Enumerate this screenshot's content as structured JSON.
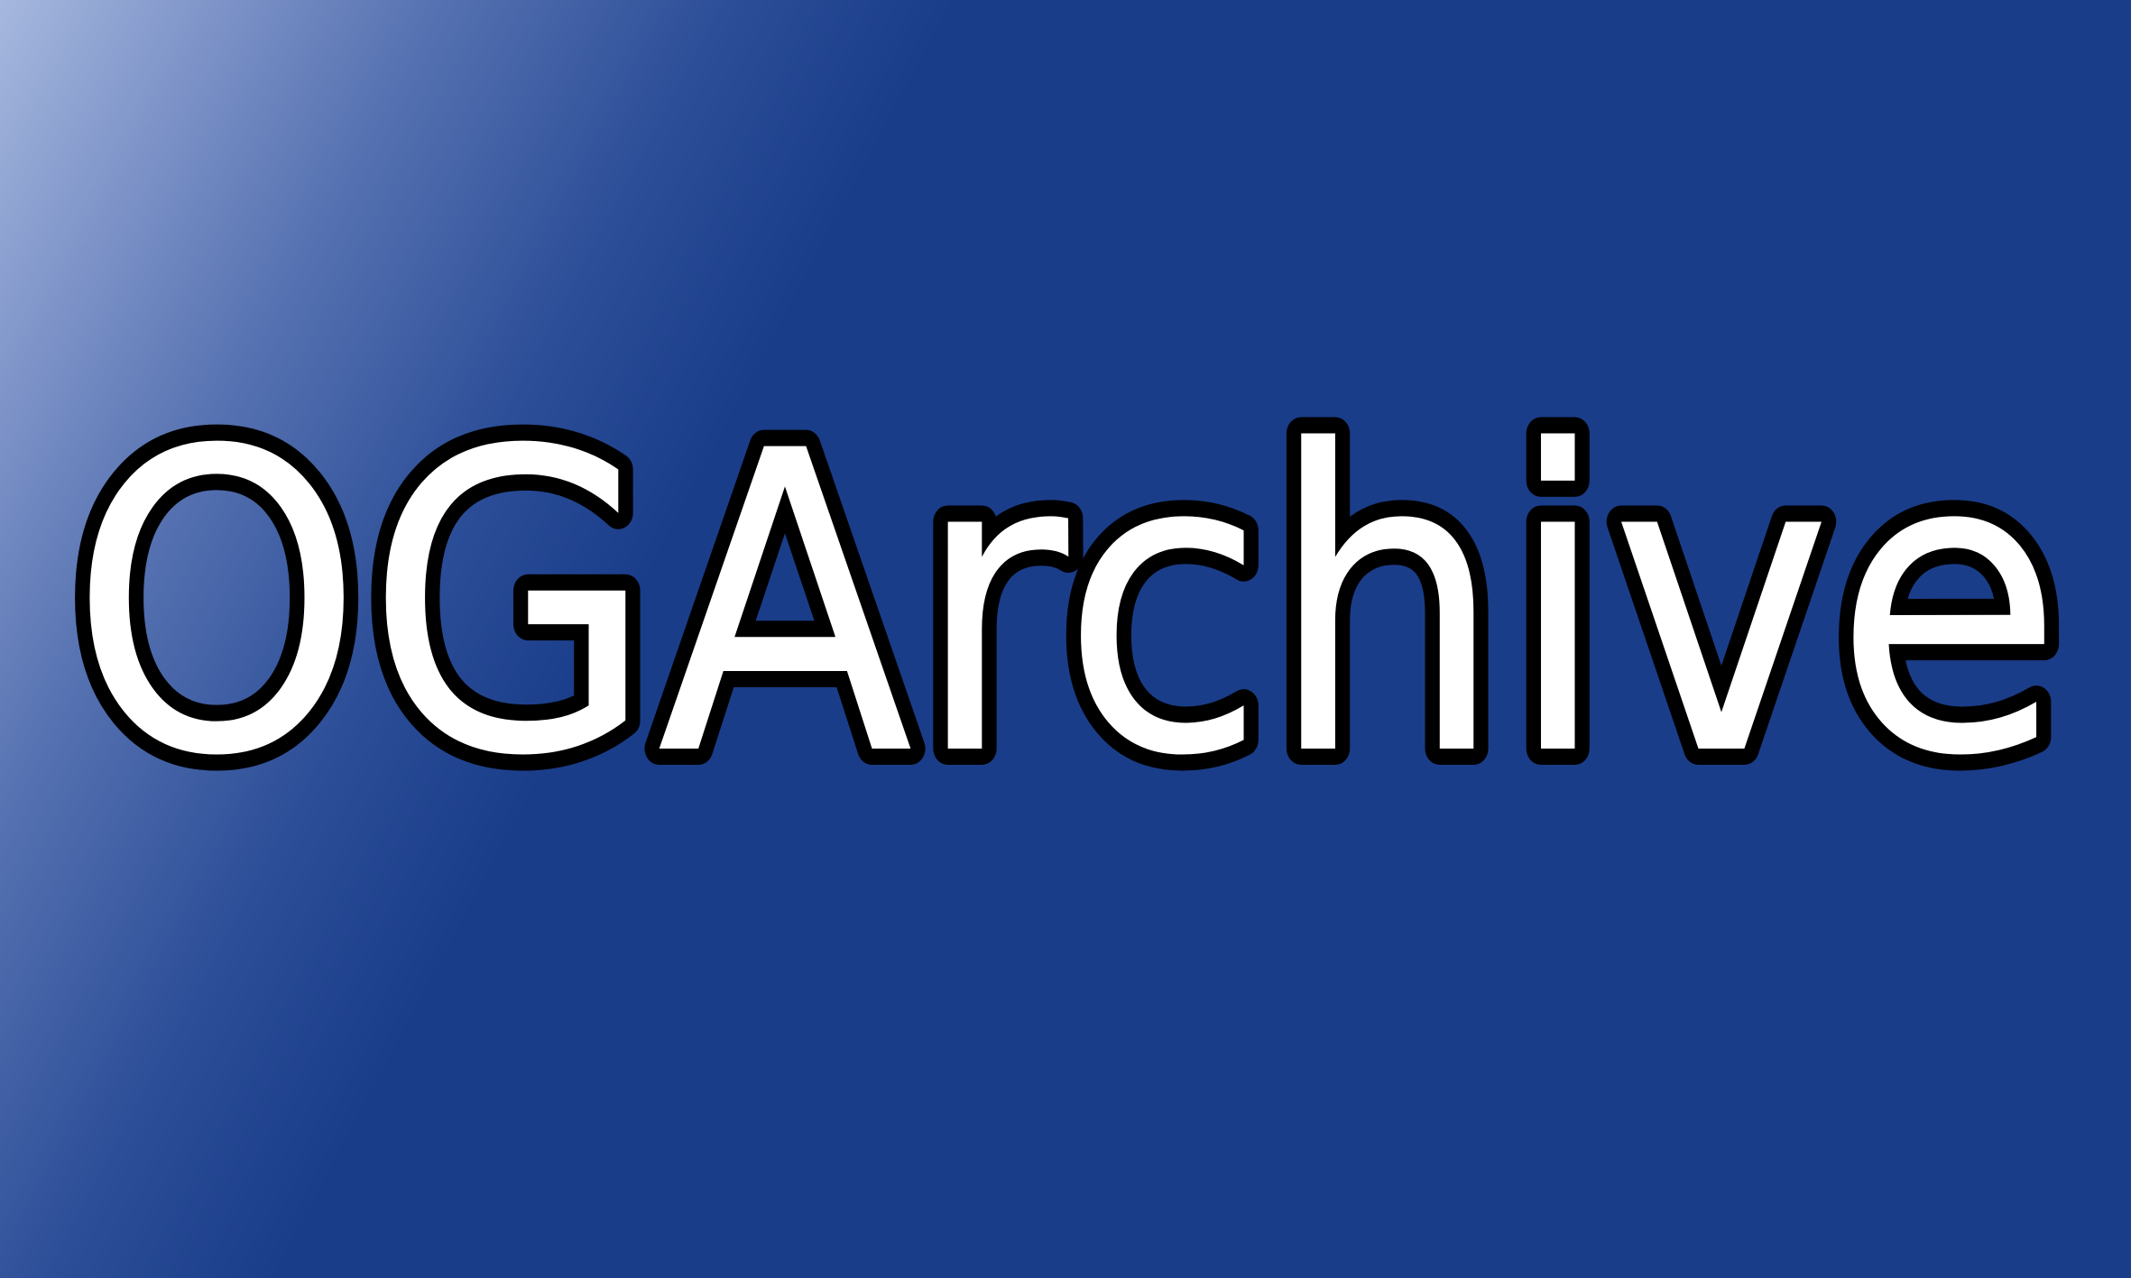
{
  "banner": {
    "logo_text": "OGArchive",
    "colors": {
      "background": "#1a3d8a",
      "highlight": "#a6b8de",
      "text_fill": "#ffffff",
      "text_outline": "#000000"
    }
  }
}
